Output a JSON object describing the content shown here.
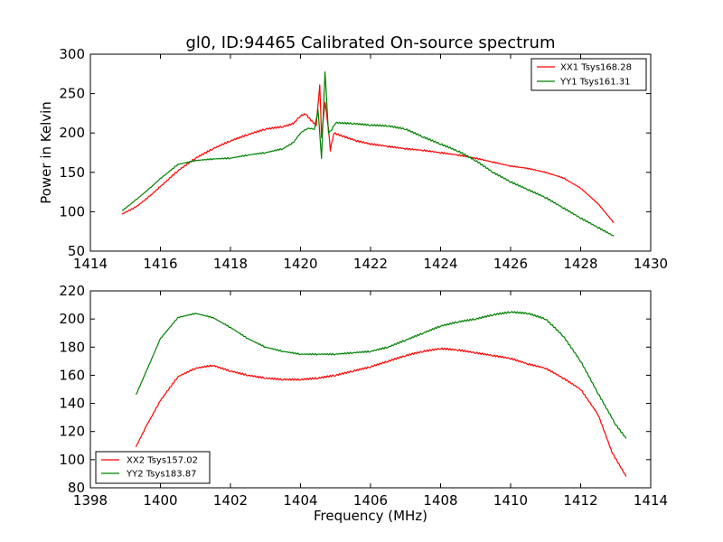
{
  "chart_data": [
    {
      "type": "line",
      "title": "gl0, ID:94465 Calibrated On-source spectrum",
      "xlabel": "",
      "ylabel": "Power in Kelvin",
      "xlim": [
        1414,
        1430
      ],
      "ylim": [
        50,
        300
      ],
      "xticks": [
        1414,
        1416,
        1418,
        1420,
        1422,
        1424,
        1426,
        1428,
        1430
      ],
      "yticks": [
        50,
        100,
        150,
        200,
        250,
        300
      ],
      "grid": false,
      "legend_position": "top-right",
      "series": [
        {
          "name": "XX1 Tsys168.28",
          "color": "#ff0000",
          "points": [
            [
              1414.9,
              97
            ],
            [
              1415.3,
              106
            ],
            [
              1415.7,
              120
            ],
            [
              1416.0,
              132
            ],
            [
              1416.5,
              152
            ],
            [
              1417.0,
              168
            ],
            [
              1417.5,
              180
            ],
            [
              1418.0,
              190
            ],
            [
              1418.5,
              198
            ],
            [
              1419.0,
              205
            ],
            [
              1419.5,
              208
            ],
            [
              1419.8,
              212
            ],
            [
              1420.0,
              222
            ],
            [
              1420.15,
              224
            ],
            [
              1420.3,
              216
            ],
            [
              1420.45,
              210
            ],
            [
              1420.55,
              262
            ],
            [
              1420.6,
              195
            ],
            [
              1420.7,
              240
            ],
            [
              1420.8,
              205
            ],
            [
              1420.85,
              178
            ],
            [
              1420.95,
              200
            ],
            [
              1421.2,
              196
            ],
            [
              1421.6,
              190
            ],
            [
              1422.0,
              186
            ],
            [
              1422.5,
              183
            ],
            [
              1423.0,
              180
            ],
            [
              1423.5,
              178
            ],
            [
              1424.0,
              175
            ],
            [
              1424.5,
              172
            ],
            [
              1425.0,
              168
            ],
            [
              1425.5,
              163
            ],
            [
              1426.0,
              158
            ],
            [
              1426.5,
              155
            ],
            [
              1427.0,
              150
            ],
            [
              1427.5,
              143
            ],
            [
              1428.0,
              130
            ],
            [
              1428.5,
              110
            ],
            [
              1428.95,
              86
            ]
          ]
        },
        {
          "name": "YY1 Tsys161.31",
          "color": "#008000",
          "points": [
            [
              1414.9,
              101
            ],
            [
              1415.3,
              115
            ],
            [
              1415.7,
              130
            ],
            [
              1416.0,
              142
            ],
            [
              1416.5,
              160
            ],
            [
              1417.0,
              165
            ],
            [
              1417.5,
              167
            ],
            [
              1418.0,
              168
            ],
            [
              1418.5,
              172
            ],
            [
              1419.0,
              175
            ],
            [
              1419.5,
              180
            ],
            [
              1419.8,
              188
            ],
            [
              1420.0,
              200
            ],
            [
              1420.2,
              206
            ],
            [
              1420.4,
              205
            ],
            [
              1420.5,
              230
            ],
            [
              1420.6,
              168
            ],
            [
              1420.7,
              278
            ],
            [
              1420.8,
              200
            ],
            [
              1420.9,
              205
            ],
            [
              1421.0,
              213
            ],
            [
              1421.5,
              212
            ],
            [
              1422.0,
              210
            ],
            [
              1422.5,
              209
            ],
            [
              1423.0,
              205
            ],
            [
              1423.5,
              195
            ],
            [
              1424.0,
              186
            ],
            [
              1424.5,
              177
            ],
            [
              1425.0,
              165
            ],
            [
              1425.5,
              150
            ],
            [
              1426.0,
              138
            ],
            [
              1426.5,
              128
            ],
            [
              1427.0,
              118
            ],
            [
              1427.5,
              105
            ],
            [
              1428.0,
              92
            ],
            [
              1428.5,
              80
            ],
            [
              1428.95,
              69
            ]
          ]
        }
      ]
    },
    {
      "type": "line",
      "title": "",
      "xlabel": "Frequency (MHz)",
      "ylabel": "",
      "xlim": [
        1398,
        1414
      ],
      "ylim": [
        80,
        220
      ],
      "xticks": [
        1398,
        1400,
        1402,
        1404,
        1406,
        1408,
        1410,
        1412,
        1414
      ],
      "yticks": [
        80,
        100,
        120,
        140,
        160,
        180,
        200,
        220
      ],
      "grid": false,
      "legend_position": "bottom-left",
      "series": [
        {
          "name": "XX2 Tsys157.02",
          "color": "#ff0000",
          "points": [
            [
              1399.3,
              109
            ],
            [
              1399.6,
              124
            ],
            [
              1400.0,
              142
            ],
            [
              1400.5,
              159
            ],
            [
              1401.0,
              165
            ],
            [
              1401.5,
              167
            ],
            [
              1402.0,
              163
            ],
            [
              1402.5,
              160
            ],
            [
              1403.0,
              158
            ],
            [
              1403.5,
              157
            ],
            [
              1404.0,
              157
            ],
            [
              1404.5,
              158
            ],
            [
              1405.0,
              160
            ],
            [
              1405.5,
              163
            ],
            [
              1406.0,
              166
            ],
            [
              1406.5,
              170
            ],
            [
              1407.0,
              174
            ],
            [
              1407.5,
              177
            ],
            [
              1408.0,
              179
            ],
            [
              1408.5,
              178
            ],
            [
              1409.0,
              176
            ],
            [
              1409.5,
              174
            ],
            [
              1410.0,
              172
            ],
            [
              1410.5,
              168
            ],
            [
              1411.0,
              165
            ],
            [
              1411.5,
              158
            ],
            [
              1412.0,
              150
            ],
            [
              1412.5,
              132
            ],
            [
              1412.9,
              105
            ],
            [
              1413.3,
              88
            ]
          ]
        },
        {
          "name": "YY2 Tsys183.87",
          "color": "#008000",
          "points": [
            [
              1399.3,
              146
            ],
            [
              1399.6,
              163
            ],
            [
              1400.0,
              186
            ],
            [
              1400.5,
              201
            ],
            [
              1401.0,
              204
            ],
            [
              1401.5,
              201
            ],
            [
              1402.0,
              194
            ],
            [
              1402.5,
              186
            ],
            [
              1403.0,
              180
            ],
            [
              1403.5,
              177
            ],
            [
              1404.0,
              175
            ],
            [
              1404.5,
              175
            ],
            [
              1405.0,
              175
            ],
            [
              1405.5,
              176
            ],
            [
              1406.0,
              177
            ],
            [
              1406.5,
              180
            ],
            [
              1407.0,
              185
            ],
            [
              1407.5,
              190
            ],
            [
              1408.0,
              195
            ],
            [
              1408.5,
              198
            ],
            [
              1409.0,
              200
            ],
            [
              1409.5,
              203
            ],
            [
              1410.0,
              205
            ],
            [
              1410.5,
              204
            ],
            [
              1411.0,
              200
            ],
            [
              1411.5,
              188
            ],
            [
              1412.0,
              170
            ],
            [
              1412.5,
              147
            ],
            [
              1413.0,
              125
            ],
            [
              1413.3,
              115
            ]
          ]
        }
      ]
    }
  ]
}
